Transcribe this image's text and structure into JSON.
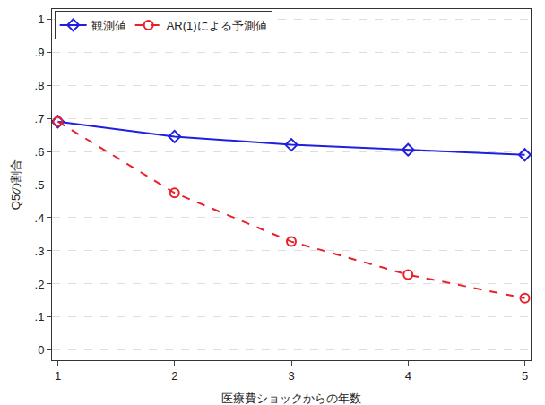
{
  "chart_data": {
    "type": "line",
    "x_label": "医療費ショックからの年数",
    "y_label": "Q5の割合",
    "x": [
      1,
      2,
      3,
      4,
      5
    ],
    "series": [
      {
        "name": "観測値",
        "color": "#1f1fe0",
        "marker": "diamond-open",
        "line_style": "solid",
        "values": [
          0.69,
          0.645,
          0.62,
          0.605,
          0.59
        ]
      },
      {
        "name": "AR(1)による予測値",
        "color": "#e8202a",
        "marker": "circle-open",
        "line_style": "dash",
        "values": [
          0.69,
          0.475,
          0.328,
          0.228,
          0.157
        ]
      }
    ],
    "xlim": [
      0.95,
      5.05
    ],
    "xticks": [
      1,
      2,
      3,
      4,
      5
    ],
    "ylim": [
      -0.03,
      1.03
    ],
    "yticks": [
      0,
      {
        "value": 0.1,
        "label": ".1"
      },
      {
        "value": 0.2,
        "label": ".2"
      },
      {
        "value": 0.3,
        "label": ".3"
      },
      {
        "value": 0.4,
        "label": ".4"
      },
      {
        "value": 0.5,
        "label": ".5"
      },
      {
        "value": 0.6,
        "label": ".6"
      },
      {
        "value": 0.7,
        "label": ".7"
      },
      {
        "value": 0.8,
        "label": ".8"
      },
      {
        "value": 0.9,
        "label": ".9"
      },
      1
    ],
    "grid": true,
    "legend": "top left"
  }
}
